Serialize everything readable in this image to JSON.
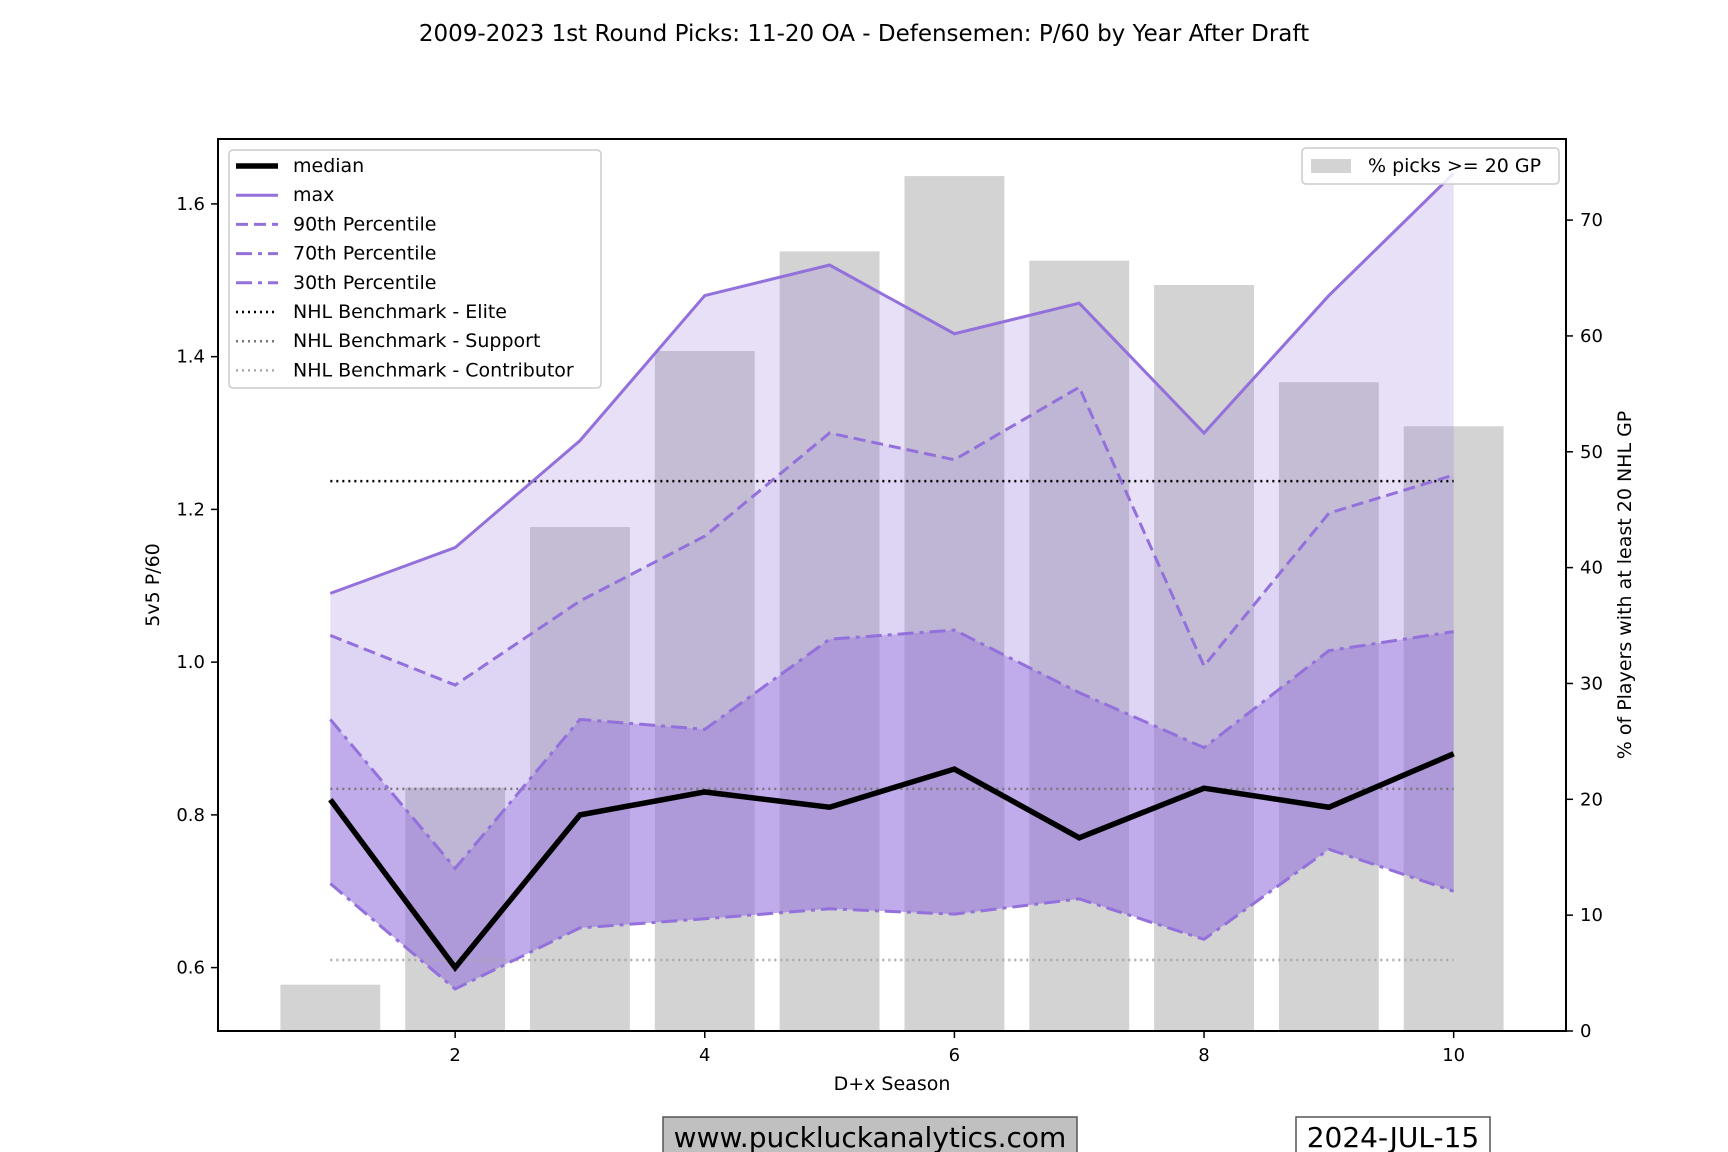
{
  "chart_data": {
    "type": "line",
    "title": "2009-2023 1st Round Picks: 11-20 OA - Defensemen: P/60 by Year After Draft",
    "xlabel": "D+x Season",
    "ylabel": "5v5 P/60",
    "y2label": "% of Players with at least 20 NHL GP",
    "x": [
      1,
      2,
      3,
      4,
      5,
      6,
      7,
      8,
      9,
      10
    ],
    "xlim": [
      0.1,
      10.9
    ],
    "ylim": [
      0.517,
      1.685
    ],
    "y2lim": [
      0,
      77
    ],
    "xticks": [
      2,
      4,
      6,
      8,
      10
    ],
    "yticks": [
      0.6,
      0.8,
      1.0,
      1.2,
      1.4,
      1.6
    ],
    "y2ticks": [
      0,
      10,
      20,
      30,
      40,
      50,
      60,
      70
    ],
    "grid": false,
    "legend_position": "top-left",
    "bar_legend_position": "top-right",
    "series": [
      {
        "name": "max",
        "style": "solid",
        "color": "#9370db",
        "values": [
          1.09,
          1.15,
          1.29,
          1.48,
          1.52,
          1.43,
          1.47,
          1.3,
          1.48,
          1.64
        ]
      },
      {
        "name": "90th Percentile",
        "style": "dashed",
        "color": "#9370db",
        "values": [
          1.035,
          0.97,
          1.08,
          1.165,
          1.3,
          1.265,
          1.36,
          0.995,
          1.195,
          1.245
        ]
      },
      {
        "name": "70th Percentile",
        "style": "dashdot",
        "color": "#9370db",
        "values": [
          0.925,
          0.73,
          0.925,
          0.912,
          1.03,
          1.042,
          0.96,
          0.888,
          1.015,
          1.04
        ]
      },
      {
        "name": "30th Percentile",
        "style": "dashdot",
        "color": "#9370db",
        "values": [
          0.71,
          0.572,
          0.652,
          0.664,
          0.677,
          0.67,
          0.69,
          0.637,
          0.755,
          0.7
        ]
      },
      {
        "name": "median",
        "style": "solid-thick",
        "color": "#000000",
        "values": [
          0.82,
          0.6,
          0.8,
          0.83,
          0.81,
          0.86,
          0.77,
          0.835,
          0.81,
          0.88
        ]
      }
    ],
    "benchmarks": [
      {
        "name": "NHL Benchmark - Elite",
        "value": 1.237,
        "color": "#000000"
      },
      {
        "name": "NHL Benchmark - Support",
        "value": 0.834,
        "color": "#777777"
      },
      {
        "name": "NHL Benchmark - Contributor",
        "value": 0.61,
        "color": "#aaaaaa"
      }
    ],
    "bars": {
      "name": "% picks >= 20 GP",
      "color": "#d3d3d3",
      "values": [
        4,
        21,
        43.5,
        58.7,
        67.3,
        73.8,
        66.5,
        64.4,
        56,
        52.2
      ]
    },
    "legend": [
      "median",
      "max",
      "90th Percentile",
      "70th Percentile",
      "30th Percentile",
      "NHL Benchmark - Elite",
      "NHL Benchmark - Support",
      "NHL Benchmark - Contributor"
    ]
  },
  "footer": {
    "website": "www.puckluckanalytics.com",
    "date": "2024-JUL-15"
  },
  "colors": {
    "accent": "#9370db",
    "bar": "#d3d3d3",
    "website_box": "#c0c0c0"
  }
}
